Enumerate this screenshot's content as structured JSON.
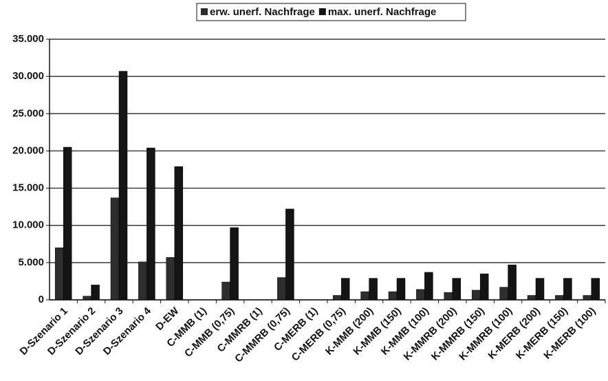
{
  "chart_data": {
    "type": "bar",
    "categories": [
      "D-Szenario 1",
      "D-Szenario 2",
      "D-Szenario 3",
      "D-Szenario 4",
      "D-EW",
      "C-MMB (1)",
      "C-MMB (0,75)",
      "C-MMRB (1)",
      "C-MMRB (0,75)",
      "C-MERB (1)",
      "C-MERB (0,75)",
      "K-MMB (200)",
      "K-MMB (150)",
      "K-MMB (100)",
      "K-MMRB (200)",
      "K-MMRB (150)",
      "K-MMRB (100)",
      "K-MERB (200)",
      "K-MERB (150)",
      "K-MERB (100)"
    ],
    "series": [
      {
        "name": "erw. unerf. Nachfrage",
        "color": "#2e2e2e",
        "values": [
          7000,
          500,
          13700,
          5100,
          5700,
          0,
          2400,
          0,
          3000,
          0,
          600,
          1100,
          1100,
          1400,
          1000,
          1300,
          1700,
          600,
          600,
          600
        ]
      },
      {
        "name": "max. unerf. Nachfrage",
        "color": "#141414",
        "values": [
          20500,
          2000,
          30700,
          20400,
          17900,
          0,
          9700,
          0,
          12200,
          0,
          2900,
          2900,
          2900,
          3700,
          2900,
          3500,
          4700,
          2900,
          2900,
          2900
        ]
      }
    ],
    "ylim": [
      0,
      35000
    ],
    "yticks": [
      0,
      {
        "value": 5000,
        "label": "5.000"
      },
      {
        "value": 10000,
        "label": "10.000"
      },
      {
        "value": 15000,
        "label": "15.000"
      },
      {
        "value": 20000,
        "label": "20.000"
      },
      {
        "value": 25000,
        "label": "25.000"
      },
      {
        "value": 30000,
        "label": "30.000"
      },
      {
        "value": 35000,
        "label": "35.000"
      }
    ],
    "grid": true,
    "legend": "top"
  }
}
